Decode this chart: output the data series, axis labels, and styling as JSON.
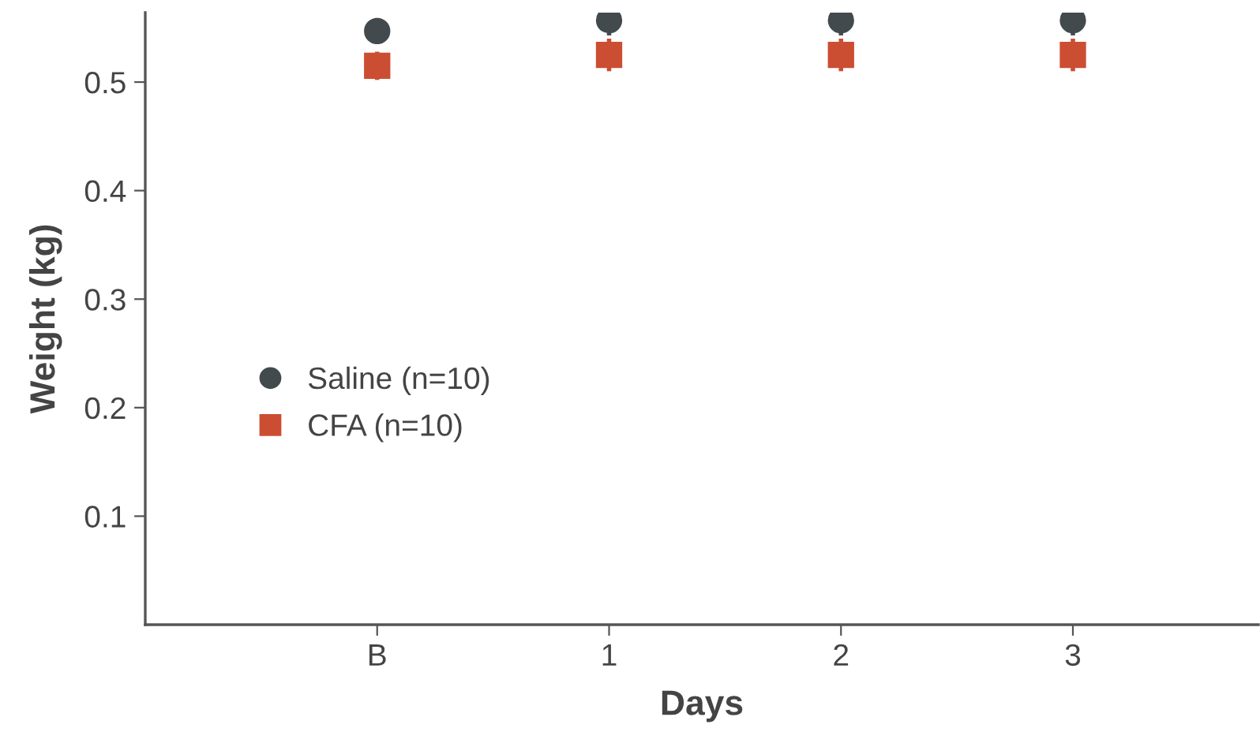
{
  "chart_data": {
    "type": "scatter",
    "xlabel": "Days",
    "ylabel": "Weight (kg)",
    "categories": [
      "B",
      "1",
      "2",
      "3"
    ],
    "series": [
      {
        "name": "Saline (n=10)",
        "color": "#434a4d",
        "marker": "circle",
        "values": [
          0.547,
          0.557,
          0.557,
          0.557
        ],
        "errors": [
          0.012,
          0.014,
          0.014,
          0.014
        ]
      },
      {
        "name": "CFA (n=10)",
        "color": "#cc4e32",
        "marker": "square",
        "values": [
          0.515,
          0.525,
          0.525,
          0.525
        ],
        "errors": [
          0.013,
          0.015,
          0.015,
          0.015
        ]
      }
    ],
    "ylim": [
      0,
      0.564
    ],
    "yticks": [
      0.1,
      0.2,
      0.3,
      0.4,
      0.5
    ],
    "grid": false,
    "legend": "left"
  }
}
